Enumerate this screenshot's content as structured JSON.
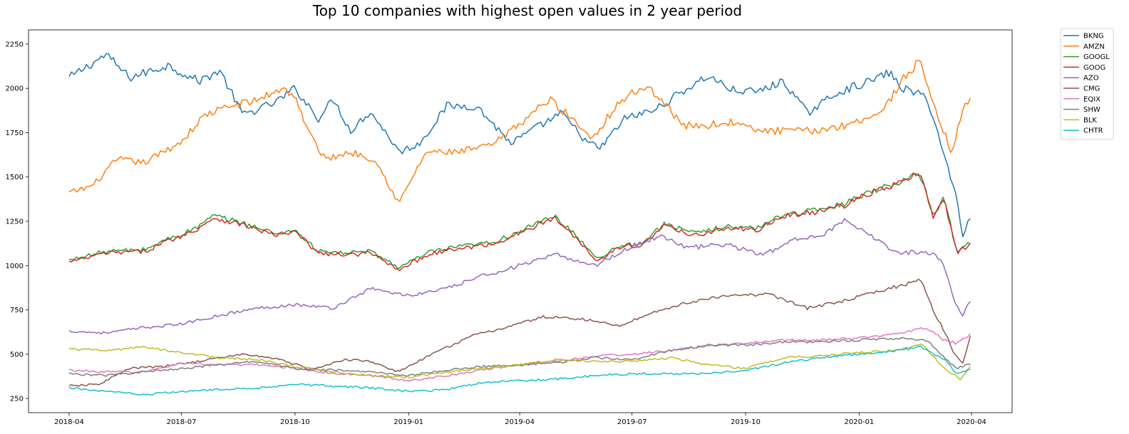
{
  "chart_data": {
    "type": "line",
    "title": "Top 10 companies with highest open values in 2 year period",
    "xlabel": "",
    "ylabel": "",
    "x_range": [
      "2018-04-01",
      "2020-04-01"
    ],
    "x_ticks": [
      "2018-04",
      "2018-07",
      "2018-10",
      "2019-01",
      "2019-04",
      "2019-07",
      "2019-10",
      "2020-01",
      "2020-04"
    ],
    "ylim": [
      170,
      2330
    ],
    "y_ticks": [
      250,
      500,
      750,
      1000,
      1250,
      1500,
      1750,
      2000,
      2250
    ],
    "grid": false,
    "legend_position": "outside-top-right",
    "series": [
      {
        "name": "BKNG",
        "color": "#1f77b4",
        "x": [
          "2018-04-01",
          "2018-05-01",
          "2018-05-20",
          "2018-06-20",
          "2018-07-15",
          "2018-08-01",
          "2018-08-20",
          "2018-09-15",
          "2018-10-01",
          "2018-10-20",
          "2018-11-01",
          "2018-11-15",
          "2018-12-01",
          "2018-12-25",
          "2019-01-10",
          "2019-02-01",
          "2019-02-25",
          "2019-03-25",
          "2019-04-15",
          "2019-05-05",
          "2019-05-25",
          "2019-06-05",
          "2019-06-25",
          "2019-07-20",
          "2019-08-10",
          "2019-09-01",
          "2019-09-20",
          "2019-10-10",
          "2019-11-01",
          "2019-11-20",
          "2019-12-15",
          "2020-01-10",
          "2020-01-25",
          "2020-02-05",
          "2020-02-25",
          "2020-03-10",
          "2020-03-20",
          "2020-03-25",
          "2020-04-01"
        ],
        "values": [
          2060,
          2190,
          2060,
          2130,
          2040,
          2100,
          1850,
          1920,
          2000,
          1830,
          1940,
          1760,
          1870,
          1640,
          1690,
          1900,
          1900,
          1690,
          1780,
          1860,
          1700,
          1660,
          1830,
          1880,
          1980,
          2070,
          1990,
          1980,
          2040,
          1860,
          1980,
          2040,
          2090,
          2000,
          1950,
          1620,
          1380,
          1170,
          1290
        ]
      },
      {
        "name": "AMZN",
        "color": "#ff7f0e",
        "x": [
          "2018-04-01",
          "2018-04-20",
          "2018-05-10",
          "2018-06-01",
          "2018-07-01",
          "2018-07-20",
          "2018-08-10",
          "2018-08-30",
          "2018-09-20",
          "2018-10-01",
          "2018-10-10",
          "2018-10-25",
          "2018-11-15",
          "2018-12-05",
          "2018-12-24",
          "2019-01-15",
          "2019-02-10",
          "2019-03-10",
          "2019-04-01",
          "2019-04-25",
          "2019-05-10",
          "2019-05-30",
          "2019-06-20",
          "2019-07-10",
          "2019-07-25",
          "2019-08-10",
          "2019-08-30",
          "2019-09-20",
          "2019-10-10",
          "2019-10-30",
          "2019-11-25",
          "2019-12-20",
          "2020-01-20",
          "2020-02-05",
          "2020-02-20",
          "2020-03-01",
          "2020-03-16",
          "2020-03-25",
          "2020-04-01"
        ],
        "values": [
          1410,
          1450,
          1600,
          1580,
          1700,
          1850,
          1900,
          1930,
          2000,
          1960,
          1780,
          1600,
          1640,
          1600,
          1350,
          1640,
          1640,
          1680,
          1800,
          1940,
          1850,
          1720,
          1920,
          2010,
          1950,
          1790,
          1790,
          1810,
          1760,
          1760,
          1760,
          1790,
          1870,
          2050,
          2160,
          1900,
          1640,
          1880,
          1940
        ]
      },
      {
        "name": "GOOGL",
        "color": "#2ca02c",
        "x": [
          "2018-04-01",
          "2018-05-01",
          "2018-06-01",
          "2018-06-20",
          "2018-07-10",
          "2018-07-27",
          "2018-08-20",
          "2018-09-15",
          "2018-10-01",
          "2018-10-20",
          "2018-11-10",
          "2018-12-01",
          "2018-12-24",
          "2019-01-20",
          "2019-02-15",
          "2019-03-10",
          "2019-04-10",
          "2019-04-29",
          "2019-05-15",
          "2019-06-03",
          "2019-06-20",
          "2019-07-10",
          "2019-07-28",
          "2019-08-20",
          "2019-09-15",
          "2019-10-10",
          "2019-11-01",
          "2019-11-25",
          "2019-12-20",
          "2020-01-10",
          "2020-01-25",
          "2020-02-19",
          "2020-03-01",
          "2020-03-10",
          "2020-03-20",
          "2020-04-01"
        ],
        "values": [
          1030,
          1080,
          1090,
          1150,
          1200,
          1280,
          1240,
          1180,
          1200,
          1080,
          1070,
          1080,
          990,
          1080,
          1110,
          1130,
          1220,
          1280,
          1180,
          1040,
          1110,
          1130,
          1240,
          1180,
          1220,
          1210,
          1290,
          1310,
          1350,
          1420,
          1450,
          1520,
          1290,
          1380,
          1080,
          1130
        ]
      },
      {
        "name": "GOOG",
        "color": "#d62728",
        "x": [
          "2018-04-01",
          "2018-05-01",
          "2018-06-01",
          "2018-06-20",
          "2018-07-10",
          "2018-07-27",
          "2018-08-20",
          "2018-09-15",
          "2018-10-01",
          "2018-10-20",
          "2018-11-10",
          "2018-12-01",
          "2018-12-24",
          "2019-01-20",
          "2019-02-15",
          "2019-03-10",
          "2019-04-10",
          "2019-04-29",
          "2019-05-15",
          "2019-06-03",
          "2019-06-20",
          "2019-07-10",
          "2019-07-28",
          "2019-08-20",
          "2019-09-15",
          "2019-10-10",
          "2019-11-01",
          "2019-11-25",
          "2019-12-20",
          "2020-01-10",
          "2020-01-25",
          "2020-02-19",
          "2020-03-01",
          "2020-03-10",
          "2020-03-20",
          "2020-04-01"
        ],
        "values": [
          1020,
          1070,
          1080,
          1140,
          1190,
          1270,
          1230,
          1170,
          1190,
          1070,
          1060,
          1070,
          980,
          1070,
          1100,
          1120,
          1210,
          1270,
          1170,
          1030,
          1100,
          1120,
          1230,
          1170,
          1210,
          1200,
          1280,
          1300,
          1340,
          1410,
          1440,
          1520,
          1280,
          1370,
          1070,
          1120
        ]
      },
      {
        "name": "AZO",
        "color": "#9467bd",
        "x": [
          "2018-04-01",
          "2018-05-01",
          "2018-06-01",
          "2018-07-01",
          "2018-08-01",
          "2018-09-01",
          "2018-10-01",
          "2018-11-01",
          "2018-12-01",
          "2019-01-01",
          "2019-02-01",
          "2019-03-01",
          "2019-04-01",
          "2019-05-01",
          "2019-06-01",
          "2019-07-01",
          "2019-07-25",
          "2019-08-15",
          "2019-09-15",
          "2019-10-15",
          "2019-11-15",
          "2019-12-01",
          "2019-12-20",
          "2020-01-15",
          "2020-02-01",
          "2020-02-20",
          "2020-03-01",
          "2020-03-10",
          "2020-03-18",
          "2020-03-25",
          "2020-04-01"
        ],
        "values": [
          630,
          620,
          650,
          670,
          720,
          760,
          780,
          760,
          870,
          830,
          870,
          940,
          1000,
          1060,
          1000,
          1110,
          1170,
          1100,
          1120,
          1060,
          1160,
          1170,
          1250,
          1150,
          1070,
          1080,
          1070,
          1000,
          800,
          720,
          810
        ]
      },
      {
        "name": "CMG",
        "color": "#8c564b",
        "x": [
          "2018-04-01",
          "2018-04-25",
          "2018-05-20",
          "2018-06-15",
          "2018-07-15",
          "2018-08-01",
          "2018-08-20",
          "2018-09-20",
          "2018-10-15",
          "2018-11-10",
          "2018-12-01",
          "2018-12-24",
          "2019-01-20",
          "2019-02-20",
          "2019-03-20",
          "2019-04-20",
          "2019-05-20",
          "2019-06-20",
          "2019-07-20",
          "2019-08-20",
          "2019-09-20",
          "2019-10-20",
          "2019-11-20",
          "2019-12-20",
          "2020-01-20",
          "2020-02-20",
          "2020-03-01",
          "2020-03-12",
          "2020-03-18",
          "2020-03-25",
          "2020-04-01"
        ],
        "values": [
          320,
          330,
          420,
          430,
          460,
          480,
          500,
          470,
          410,
          470,
          460,
          400,
          500,
          600,
          650,
          710,
          700,
          660,
          740,
          800,
          830,
          840,
          760,
          800,
          860,
          920,
          750,
          600,
          500,
          450,
          620
        ]
      },
      {
        "name": "EQIX",
        "color": "#e377c2",
        "x": [
          "2018-04-01",
          "2018-05-01",
          "2018-06-01",
          "2018-07-01",
          "2018-08-01",
          "2018-09-01",
          "2018-10-01",
          "2018-11-01",
          "2018-12-01",
          "2019-01-01",
          "2019-02-01",
          "2019-03-01",
          "2019-04-01",
          "2019-05-01",
          "2019-06-01",
          "2019-07-01",
          "2019-08-01",
          "2019-09-01",
          "2019-10-01",
          "2019-11-01",
          "2019-12-01",
          "2020-01-01",
          "2020-02-01",
          "2020-02-25",
          "2020-03-10",
          "2020-03-20",
          "2020-04-01"
        ],
        "values": [
          410,
          400,
          400,
          450,
          440,
          440,
          420,
          390,
          380,
          350,
          380,
          410,
          440,
          460,
          490,
          500,
          520,
          550,
          560,
          580,
          580,
          590,
          620,
          650,
          580,
          560,
          620
        ]
      },
      {
        "name": "SHW",
        "color": "#7f7f7f",
        "x": [
          "2018-04-01",
          "2018-05-01",
          "2018-06-01",
          "2018-07-01",
          "2018-08-01",
          "2018-09-01",
          "2018-10-01",
          "2018-11-01",
          "2018-12-01",
          "2019-01-01",
          "2019-02-01",
          "2019-03-01",
          "2019-04-01",
          "2019-05-01",
          "2019-06-01",
          "2019-07-01",
          "2019-08-01",
          "2019-09-01",
          "2019-10-01",
          "2019-11-01",
          "2019-12-01",
          "2020-01-01",
          "2020-02-01",
          "2020-02-25",
          "2020-03-10",
          "2020-03-20",
          "2020-04-01"
        ],
        "values": [
          390,
          380,
          400,
          420,
          440,
          460,
          420,
          410,
          400,
          380,
          410,
          430,
          440,
          450,
          480,
          470,
          520,
          550,
          550,
          570,
          570,
          580,
          590,
          580,
          480,
          420,
          450
        ]
      },
      {
        "name": "BLK",
        "color": "#bcbd22",
        "x": [
          "2018-04-01",
          "2018-05-01",
          "2018-06-01",
          "2018-07-01",
          "2018-08-01",
          "2018-09-01",
          "2018-10-01",
          "2018-11-01",
          "2018-12-01",
          "2019-01-01",
          "2019-02-01",
          "2019-03-01",
          "2019-04-01",
          "2019-05-01",
          "2019-06-01",
          "2019-07-01",
          "2019-08-01",
          "2019-09-01",
          "2019-10-01",
          "2019-11-01",
          "2019-12-01",
          "2020-01-01",
          "2020-02-01",
          "2020-02-20",
          "2020-03-10",
          "2020-03-23",
          "2020-04-01"
        ],
        "values": [
          530,
          520,
          540,
          510,
          480,
          470,
          430,
          400,
          380,
          370,
          400,
          420,
          440,
          470,
          460,
          460,
          480,
          440,
          420,
          480,
          490,
          510,
          520,
          560,
          420,
          360,
          440
        ]
      },
      {
        "name": "CHTR",
        "color": "#17becf",
        "x": [
          "2018-04-01",
          "2018-05-01",
          "2018-06-01",
          "2018-07-01",
          "2018-08-01",
          "2018-09-01",
          "2018-10-01",
          "2018-11-01",
          "2018-12-01",
          "2019-01-01",
          "2019-02-01",
          "2019-03-01",
          "2019-04-01",
          "2019-05-01",
          "2019-06-01",
          "2019-07-01",
          "2019-08-01",
          "2019-09-01",
          "2019-10-01",
          "2019-11-01",
          "2019-12-01",
          "2020-01-01",
          "2020-02-01",
          "2020-02-20",
          "2020-03-10",
          "2020-03-20",
          "2020-04-01"
        ],
        "values": [
          310,
          290,
          270,
          290,
          300,
          310,
          330,
          320,
          310,
          290,
          300,
          340,
          350,
          360,
          380,
          390,
          390,
          390,
          410,
          450,
          480,
          500,
          520,
          540,
          470,
          390,
          420
        ]
      }
    ]
  }
}
